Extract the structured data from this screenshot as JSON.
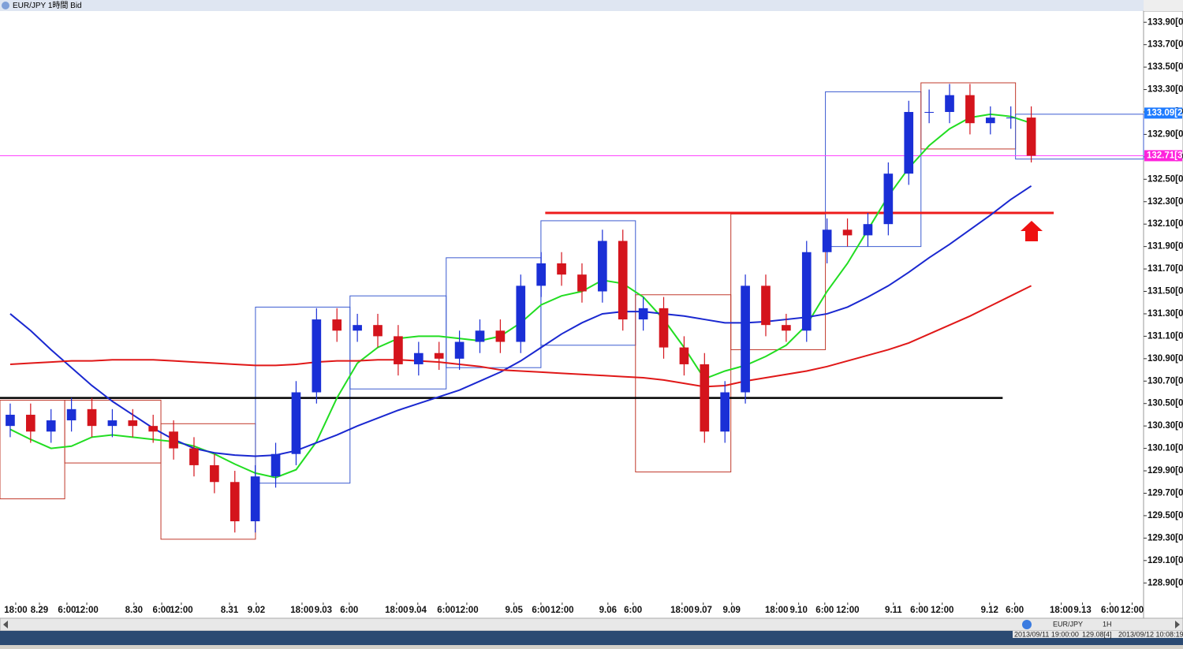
{
  "chart_data": {
    "type": "candlestick",
    "title": "EUR/JPY 1時間 Bid",
    "x": [
      0.5,
      1.5,
      2.5,
      3.5,
      4.5,
      5.5,
      6.5,
      7.5,
      8.5,
      9.5,
      10.5,
      11.5,
      12.5,
      13.5,
      14.5,
      15.5,
      16.5,
      17.5,
      18.5,
      19.5,
      20.5,
      21.5,
      22.5,
      23.5,
      24.5,
      25.5,
      26.5,
      27.5,
      28.5,
      29.5,
      30.5,
      31.5,
      32.5,
      33.5,
      34.5,
      35.5,
      36.5,
      37.5,
      38.5,
      39.5,
      40.5,
      41.5,
      42.5,
      43.5,
      44.5,
      45.5,
      46.5,
      47.5,
      48.5,
      49.5,
      50.5
    ],
    "open": [
      130.3,
      130.4,
      130.25,
      130.35,
      130.45,
      130.3,
      130.35,
      130.3,
      130.25,
      130.1,
      129.95,
      129.8,
      129.45,
      129.85,
      130.05,
      130.6,
      131.25,
      131.15,
      131.2,
      131.1,
      130.85,
      130.95,
      130.9,
      131.05,
      131.15,
      131.05,
      131.55,
      131.75,
      131.65,
      131.5,
      131.95,
      131.25,
      131.35,
      131.0,
      130.85,
      130.25,
      130.6,
      131.55,
      131.2,
      131.15,
      131.85,
      132.05,
      132.0,
      132.1,
      132.55,
      133.1,
      133.1,
      133.25,
      133.0,
      133.05,
      133.05
    ],
    "high": [
      130.5,
      130.5,
      130.45,
      130.55,
      130.55,
      130.45,
      130.45,
      130.4,
      130.35,
      130.2,
      130.05,
      129.9,
      129.95,
      130.15,
      130.7,
      131.35,
      131.35,
      131.3,
      131.3,
      131.2,
      131.05,
      131.05,
      131.15,
      131.25,
      131.25,
      131.65,
      131.85,
      131.85,
      131.75,
      132.05,
      132.05,
      131.45,
      131.45,
      131.1,
      130.95,
      130.7,
      131.65,
      131.65,
      131.3,
      131.95,
      132.15,
      132.15,
      132.2,
      132.65,
      133.2,
      133.3,
      133.35,
      133.35,
      133.15,
      133.15,
      133.15
    ],
    "low": [
      130.2,
      130.15,
      130.15,
      130.25,
      130.2,
      130.2,
      130.2,
      130.15,
      130.0,
      129.85,
      129.7,
      129.35,
      129.35,
      129.75,
      129.95,
      130.5,
      131.05,
      131.05,
      131.0,
      130.75,
      130.75,
      130.8,
      130.8,
      130.95,
      130.95,
      130.95,
      131.45,
      131.55,
      131.4,
      131.4,
      131.15,
      131.15,
      130.9,
      130.75,
      130.15,
      130.15,
      130.5,
      131.1,
      131.05,
      131.05,
      131.75,
      131.9,
      131.9,
      132.0,
      132.45,
      133.0,
      133.0,
      132.9,
      132.9,
      132.95,
      132.65
    ],
    "close": [
      130.4,
      130.25,
      130.35,
      130.45,
      130.3,
      130.35,
      130.3,
      130.25,
      130.1,
      129.95,
      129.8,
      129.45,
      129.85,
      130.05,
      130.6,
      131.25,
      131.15,
      131.2,
      131.1,
      130.85,
      130.95,
      130.9,
      131.05,
      131.15,
      131.05,
      131.55,
      131.75,
      131.65,
      131.5,
      131.95,
      131.25,
      131.35,
      131.0,
      130.85,
      130.25,
      130.6,
      131.55,
      131.2,
      131.15,
      131.85,
      132.05,
      132.0,
      132.1,
      132.55,
      133.1,
      133.1,
      133.25,
      133.0,
      133.05,
      133.05,
      132.71
    ],
    "up_color": "#1a2fd6",
    "down_color": "#d4141c",
    "series": [
      {
        "color": "#22dd22",
        "values": [
          130.27,
          130.18,
          130.1,
          130.12,
          130.2,
          130.22,
          130.2,
          130.18,
          130.16,
          130.12,
          130.05,
          129.96,
          129.88,
          129.84,
          129.91,
          130.16,
          130.55,
          130.86,
          131.0,
          131.08,
          131.1,
          131.1,
          131.08,
          131.06,
          131.1,
          131.22,
          131.38,
          131.46,
          131.5,
          131.6,
          131.57,
          131.45,
          131.25,
          131.0,
          130.72,
          130.79,
          130.84,
          130.92,
          131.02,
          131.2,
          131.5,
          131.75,
          132.05,
          132.35,
          132.6,
          132.8,
          132.95,
          133.05,
          133.08,
          133.06,
          133.0
        ]
      },
      {
        "color": "#1a28d0",
        "values": [
          131.3,
          131.15,
          130.98,
          130.82,
          130.66,
          130.52,
          130.4,
          130.28,
          130.18,
          130.1,
          130.06,
          130.04,
          130.03,
          130.04,
          130.08,
          130.15,
          130.22,
          130.3,
          130.37,
          130.44,
          130.5,
          130.56,
          130.62,
          130.7,
          130.78,
          130.88,
          131.0,
          131.12,
          131.22,
          131.3,
          131.32,
          131.32,
          131.3,
          131.28,
          131.25,
          131.22,
          131.22,
          131.23,
          131.25,
          131.27,
          131.3,
          131.36,
          131.45,
          131.55,
          131.67,
          131.8,
          131.92,
          132.05,
          132.18,
          132.32,
          132.44
        ]
      },
      {
        "color": "#e01818",
        "values": [
          130.85,
          130.86,
          130.87,
          130.88,
          130.88,
          130.89,
          130.89,
          130.89,
          130.88,
          130.87,
          130.86,
          130.85,
          130.84,
          130.84,
          130.85,
          130.87,
          130.88,
          130.88,
          130.89,
          130.89,
          130.88,
          130.87,
          130.85,
          130.83,
          130.8,
          130.79,
          130.78,
          130.77,
          130.76,
          130.75,
          130.74,
          130.73,
          130.71,
          130.68,
          130.65,
          130.66,
          130.7,
          130.73,
          130.76,
          130.79,
          130.83,
          130.88,
          130.93,
          130.98,
          131.04,
          131.12,
          131.2,
          131.28,
          131.37,
          131.46,
          131.55
        ]
      }
    ],
    "range_boxes": [
      {
        "x0": 0,
        "x1": 3.17,
        "high": 130.53,
        "low": 129.65,
        "color": "#c0392b"
      },
      {
        "x0": 3.17,
        "x1": 7.88,
        "high": 130.53,
        "low": 129.97,
        "color": "#c0392b"
      },
      {
        "x0": 7.88,
        "x1": 12.51,
        "high": 130.32,
        "low": 129.29,
        "color": "#c0392b"
      },
      {
        "x0": 12.51,
        "x1": 17.14,
        "high": 131.36,
        "low": 129.79,
        "color": "#3b5bd0"
      },
      {
        "x0": 17.14,
        "x1": 21.85,
        "high": 131.46,
        "low": 130.63,
        "color": "#3b5bd0"
      },
      {
        "x0": 21.85,
        "x1": 26.49,
        "high": 131.8,
        "low": 130.82,
        "color": "#3b5bd0"
      },
      {
        "x0": 26.49,
        "x1": 31.12,
        "high": 132.13,
        "low": 131.02,
        "color": "#3b5bd0"
      },
      {
        "x0": 31.12,
        "x1": 35.79,
        "high": 131.47,
        "low": 129.89,
        "color": "#c0392b"
      },
      {
        "x0": 35.79,
        "x1": 40.42,
        "high": 132.19,
        "low": 130.98,
        "color": "#c0392b"
      },
      {
        "x0": 40.42,
        "x1": 45.1,
        "high": 133.28,
        "low": 131.9,
        "color": "#3b5bd0"
      },
      {
        "x0": 45.1,
        "x1": 49.73,
        "high": 133.36,
        "low": 132.77,
        "color": "#c0392b"
      },
      {
        "x0": 49.73,
        "x1": 56,
        "high": 133.08,
        "low": 132.68,
        "color": "#3b5bd0"
      }
    ],
    "hlines": [
      {
        "value": 132.71,
        "x0": 0,
        "x1": 56,
        "color": "#ff44ff",
        "width": 1
      },
      {
        "value": 132.2,
        "x0": 26.7,
        "x1": 51.6,
        "color": "#ee1c1c",
        "width": 3
      },
      {
        "value": 130.55,
        "x0": 0,
        "x1": 49.1,
        "color": "#000000",
        "width": 2.5
      }
    ],
    "price_markers": [
      {
        "value": 133.09,
        "label": "133.09[2",
        "color": "#1e7bff"
      },
      {
        "value": 132.71,
        "label": "132.71[3",
        "color": "#ff22dd"
      }
    ],
    "xlim": [
      0,
      56
    ],
    "ylim": [
      128.74,
      134.0
    ],
    "yticks": [
      {
        "value": 133.9,
        "label": "133.90[0"
      },
      {
        "value": 133.7,
        "label": "133.70[0"
      },
      {
        "value": 133.5,
        "label": "133.50[0"
      },
      {
        "value": 133.3,
        "label": "133.30[0"
      },
      {
        "value": 133.1,
        "label": "133.10[0"
      },
      {
        "value": 132.9,
        "label": "132.90[0"
      },
      {
        "value": 132.7,
        "label": "132.70[0"
      },
      {
        "value": 132.5,
        "label": "132.50[0"
      },
      {
        "value": 132.3,
        "label": "132.30[0"
      },
      {
        "value": 132.1,
        "label": "132.10[0"
      },
      {
        "value": 131.9,
        "label": "131.90[0"
      },
      {
        "value": 131.7,
        "label": "131.70[0"
      },
      {
        "value": 131.5,
        "label": "131.50[0"
      },
      {
        "value": 131.3,
        "label": "131.30[0"
      },
      {
        "value": 131.1,
        "label": "131.10[0"
      },
      {
        "value": 130.9,
        "label": "130.90[0"
      },
      {
        "value": 130.7,
        "label": "130.70[0"
      },
      {
        "value": 130.5,
        "label": "130.50[0"
      },
      {
        "value": 130.3,
        "label": "130.30[0"
      },
      {
        "value": 130.1,
        "label": "130.10[0"
      },
      {
        "value": 129.9,
        "label": "129.90[0"
      },
      {
        "value": 129.7,
        "label": "129.70[0"
      },
      {
        "value": 129.5,
        "label": "129.50[0"
      },
      {
        "value": 129.3,
        "label": "129.30[0"
      },
      {
        "value": 129.1,
        "label": "129.10[0"
      },
      {
        "value": 128.9,
        "label": "128.90[0"
      }
    ],
    "xticks": [
      {
        "value": 0.77,
        "label": "18:00"
      },
      {
        "value": 1.93,
        "label": "8.29"
      },
      {
        "value": 3.28,
        "label": "6:00"
      },
      {
        "value": 4.25,
        "label": "12:00"
      },
      {
        "value": 6.56,
        "label": "8.30"
      },
      {
        "value": 7.92,
        "label": "6:00"
      },
      {
        "value": 8.88,
        "label": "12:00"
      },
      {
        "value": 11.24,
        "label": "8.31"
      },
      {
        "value": 12.55,
        "label": "9.02"
      },
      {
        "value": 14.79,
        "label": "18:00"
      },
      {
        "value": 15.83,
        "label": "9.03"
      },
      {
        "value": 17.1,
        "label": "6:00"
      },
      {
        "value": 19.42,
        "label": "18:00"
      },
      {
        "value": 20.46,
        "label": "9.04"
      },
      {
        "value": 21.85,
        "label": "6:00"
      },
      {
        "value": 22.86,
        "label": "12:00"
      },
      {
        "value": 25.17,
        "label": "9.05"
      },
      {
        "value": 26.49,
        "label": "6:00"
      },
      {
        "value": 27.53,
        "label": "12:00"
      },
      {
        "value": 29.77,
        "label": "9.06"
      },
      {
        "value": 31.0,
        "label": "6:00"
      },
      {
        "value": 33.4,
        "label": "18:00"
      },
      {
        "value": 34.44,
        "label": "9.07"
      },
      {
        "value": 35.83,
        "label": "9.09"
      },
      {
        "value": 38.03,
        "label": "18:00"
      },
      {
        "value": 39.11,
        "label": "9.10"
      },
      {
        "value": 40.39,
        "label": "6:00"
      },
      {
        "value": 41.51,
        "label": "12:00"
      },
      {
        "value": 43.75,
        "label": "9.11"
      },
      {
        "value": 45.02,
        "label": "6:00"
      },
      {
        "value": 46.14,
        "label": "12:00"
      },
      {
        "value": 48.46,
        "label": "9.12"
      },
      {
        "value": 49.69,
        "label": "6:00"
      },
      {
        "value": 51.97,
        "label": "18:00"
      },
      {
        "value": 53.01,
        "label": "9.13"
      },
      {
        "value": 54.36,
        "label": "6:00"
      },
      {
        "value": 55.44,
        "label": "12:00"
      }
    ]
  },
  "status_bar": {
    "symbol": "EUR/JPY",
    "timeframe": "1H",
    "start_time": "2013/09/11 19:00:00",
    "price": "129.08[4]",
    "end_time": "2013/09/12 10:08:19"
  }
}
